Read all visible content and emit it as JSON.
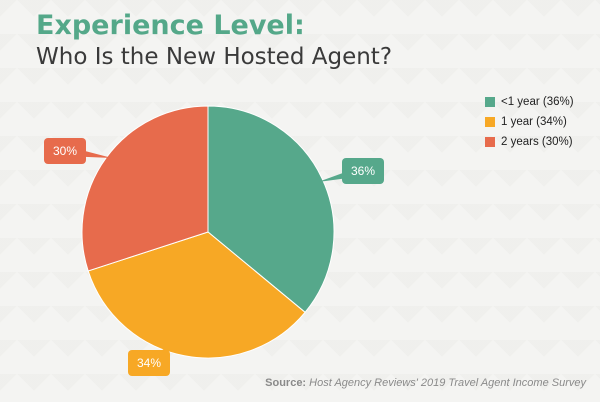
{
  "title": "Experience Level:",
  "subtitle": "Who Is the New Hosted Agent?",
  "source_label": "Source:",
  "source_text": "Host Agency Reviews' 2019 Travel Agent Income Survey",
  "chart_data": {
    "type": "pie",
    "categories": [
      "<1 year (36%)",
      "1 year (34%)",
      "2 years (30%)"
    ],
    "values": [
      36,
      34,
      30
    ],
    "data_labels": [
      "36%",
      "34%",
      "30%"
    ],
    "colors": [
      "#56a88b",
      "#f7a825",
      "#e76b4c"
    ],
    "start_angle_deg": 0,
    "direction": "clockwise",
    "legend_position": "top-right"
  }
}
